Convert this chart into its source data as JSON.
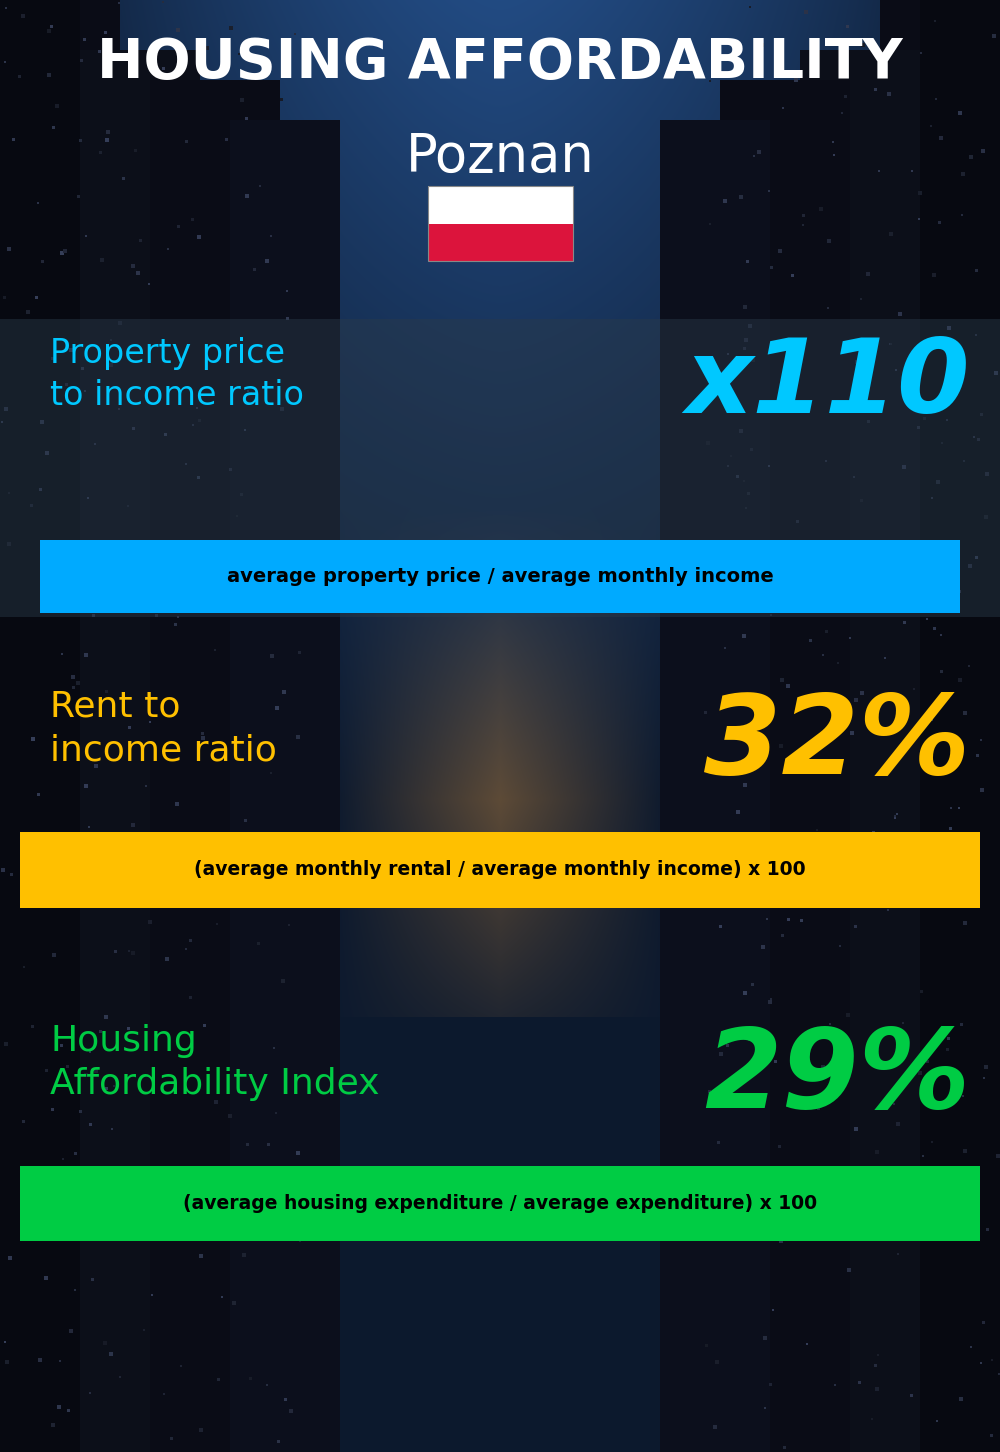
{
  "title_line1": "HOUSING AFFORDABILITY",
  "title_line2": "Poznan",
  "bg_color": "#0d1b2a",
  "title_color": "#ffffff",
  "city_color": "#ffffff",
  "section1_label": "Property price\nto income ratio",
  "section1_value": "x110",
  "section1_label_color": "#00c8ff",
  "section1_value_color": "#00c8ff",
  "section1_formula": "average property price / average monthly income",
  "section1_formula_bg": "#00aaff",
  "section1_formula_color": "#000000",
  "section2_label": "Rent to\nincome ratio",
  "section2_value": "32%",
  "section2_label_color": "#ffc000",
  "section2_value_color": "#ffc000",
  "section2_formula": "(average monthly rental / average monthly income) x 100",
  "section2_formula_bg": "#ffc000",
  "section2_formula_color": "#000000",
  "section3_label": "Housing\nAffordability Index",
  "section3_value": "29%",
  "section3_label_color": "#00cc44",
  "section3_value_color": "#00cc44",
  "section3_formula": "(average housing expenditure / average expenditure) x 100",
  "section3_formula_bg": "#00cc44",
  "section3_formula_color": "#000000",
  "fig_width": 10.0,
  "fig_height": 14.52
}
